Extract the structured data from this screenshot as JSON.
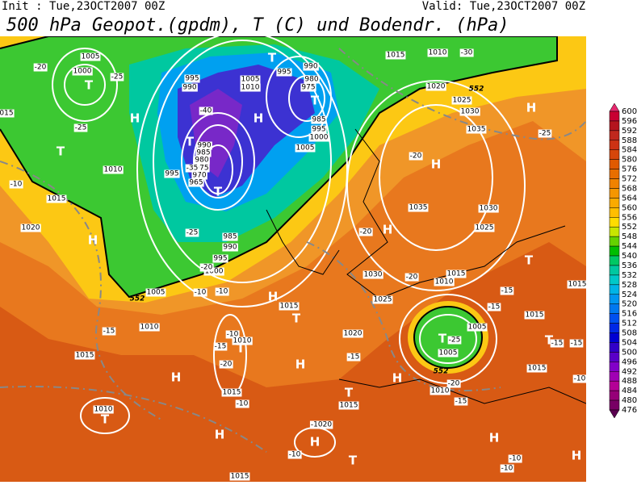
{
  "header": {
    "init": "Init : Tue,23OCT2007 00Z",
    "valid": "Valid: Tue,23OCT2007 00Z",
    "title": "500 hPa Geopot.(gpdm), T (C) und Bodendr. (hPa)"
  },
  "colorbar": {
    "levels": [
      600,
      596,
      592,
      588,
      584,
      580,
      576,
      572,
      568,
      564,
      560,
      556,
      552,
      548,
      544,
      540,
      536,
      532,
      528,
      524,
      520,
      516,
      512,
      508,
      504,
      500,
      496,
      492,
      488,
      484,
      480,
      476
    ],
    "colors": [
      "#e6286e",
      "#c80032",
      "#b4141e",
      "#c0281e",
      "#cc3214",
      "#d6460a",
      "#e05a00",
      "#e86e00",
      "#f08200",
      "#f59600",
      "#faaa00",
      "#ffbe00",
      "#ffdc00",
      "#c8e600",
      "#64d200",
      "#00be00",
      "#00c864",
      "#00c8a0",
      "#00c8c8",
      "#00b4e6",
      "#0096f0",
      "#0078f0",
      "#0050f0",
      "#0028e6",
      "#0000d2",
      "#3200c8",
      "#5a00c8",
      "#8200c8",
      "#a000b4",
      "#b40096",
      "#960078",
      "#780064",
      "#5a0050"
    ]
  },
  "map_labels": [
    "1005",
    "1000",
    "T",
    "-25",
    "-20",
    "-25",
    "015",
    "T",
    "1010",
    "-10",
    "1015",
    "1020",
    "H",
    "995",
    "990",
    "1005",
    "1010",
    "T",
    "995",
    "990",
    "980",
    "975",
    "T",
    "985",
    "995",
    "1000",
    "1005",
    "H",
    "-40",
    "H",
    "T",
    "990",
    "985",
    "980",
    "975",
    "970",
    "965",
    "T",
    "995",
    "-35",
    "985",
    "990",
    "995",
    "1000",
    "1005",
    "-25",
    "-20",
    "1015",
    "1010",
    "-30",
    "1020",
    "1025",
    "1030",
    "1035",
    "H",
    "-25",
    "H",
    "-20",
    "1035",
    "1030",
    "1025",
    "H",
    "-20",
    "1030",
    "1025",
    "H",
    "1015",
    "T",
    "-10",
    "-10",
    "-15",
    "1010",
    "1015",
    "H",
    "1010",
    "T",
    "-10",
    "-15",
    "1010",
    "T",
    "-20",
    "H",
    "1015",
    "-10",
    "-1020",
    "H",
    "T",
    "H",
    "-10",
    "1015",
    "1020",
    "-15",
    "T",
    "1015",
    "H",
    "1010",
    "1015",
    "-20",
    "T",
    "-25",
    "1005",
    "1005",
    "-15",
    "T",
    "-15",
    "1015",
    "T",
    "-15",
    "-20",
    "1010",
    "-15",
    "1015",
    "H",
    "H",
    "-10",
    "-10",
    "1015",
    "-15",
    "-10",
    "552",
    "552",
    "552"
  ]
}
